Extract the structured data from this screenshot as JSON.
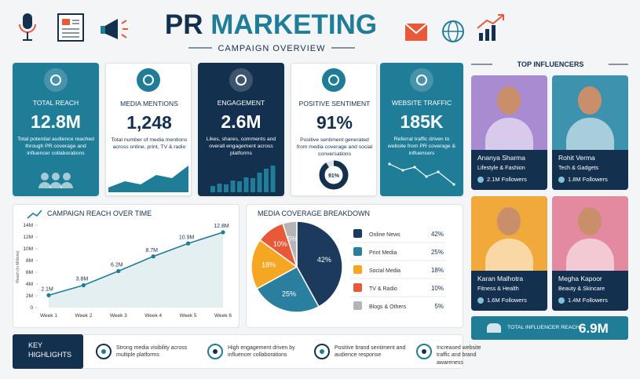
{
  "header": {
    "title_1": "PR",
    "title_2": "MARKETING",
    "subtitle": "CAMPAIGN OVERVIEW"
  },
  "kpis": [
    {
      "label": "TOTAL REACH",
      "value": "12.8M",
      "desc": "Total potential audience reached through PR coverage and influencer collaborations"
    },
    {
      "label": "MEDIA MENTIONS",
      "value": "1,248",
      "desc": "Total number of media mentions across online, print, TV & radio"
    },
    {
      "label": "ENGAGEMENT",
      "value": "2.6M",
      "desc": "Likes, shares, comments and overall engagement across platforms"
    },
    {
      "label": "POSITIVE SENTIMENT",
      "value": "91%",
      "desc": "Positive sentiment generated from media coverage and social conversations",
      "donut": {
        "value": 91,
        "label": "91%"
      }
    },
    {
      "label": "WEBSITE TRAFFIC",
      "value": "185K",
      "desc": "Referral traffic driven to website from PR coverage & influencers"
    }
  ],
  "chart_data": [
    {
      "type": "line",
      "title": "CAMPAIGN REACH OVER TIME",
      "y_label": "Reach (in Millions)",
      "categories": [
        "Week 1",
        "Week 2",
        "Week 3",
        "Week 4",
        "Week 5",
        "Week 6"
      ],
      "values": [
        2.1,
        3.8,
        6.2,
        8.7,
        10.9,
        12.8
      ],
      "value_labels": [
        "2.1M",
        "3.8M",
        "6.2M",
        "8.7M",
        "10.9M",
        "12.8M"
      ],
      "color": "#1f7d98",
      "ylim": [
        0,
        14
      ],
      "yticks": [
        0,
        {
          "value": 2,
          "label": "2M"
        },
        {
          "value": 4,
          "label": "4M"
        },
        {
          "value": 6,
          "label": "6M"
        },
        {
          "value": 8,
          "label": "8M"
        },
        {
          "value": 10,
          "label": "10M"
        },
        {
          "value": 12,
          "label": "12M"
        },
        {
          "value": 14,
          "label": "14M"
        }
      ]
    },
    {
      "type": "pie",
      "title": "MEDIA COVERAGE BREAKDOWN",
      "categories": [
        "Online News",
        "Print Media",
        "Social Media",
        "TV & Radio",
        "Blogs & Others"
      ],
      "values": [
        42,
        25,
        18,
        10,
        5
      ],
      "value_labels": [
        "42%",
        "25%",
        "18%",
        "10%",
        "5%"
      ],
      "colors": [
        "#1b3a5c",
        "#2a7f9e",
        "#f5a623",
        "#e8593a",
        "#b5b5b5"
      ]
    }
  ],
  "influencers": {
    "title": "TOP INFLUENCERS",
    "people": [
      {
        "name": "Ananya Sharma",
        "category": "Lifestyle & Fashion",
        "followers": "2.1M Followers"
      },
      {
        "name": "Rohit Verma",
        "category": "Tech & Gadgets",
        "followers": "1.8M Followers"
      },
      {
        "name": "Karan Malhotra",
        "category": "Fitness & Health",
        "followers": "1.6M Followers"
      },
      {
        "name": "Megha Kapoor",
        "category": "Beauty & Skincare",
        "followers": "1.4M Followers"
      }
    ],
    "total_label": "TOTAL INFLUENCER REACH",
    "total_value": "6.9M"
  },
  "highlights": {
    "title": "KEY HIGHLIGHTS",
    "items": [
      "Strong media visibility across multiple platforms",
      "High engagement driven by influencer collaborations",
      "Positive brand sentiment and audience response",
      "Increased website traffic and brand awareness"
    ]
  }
}
